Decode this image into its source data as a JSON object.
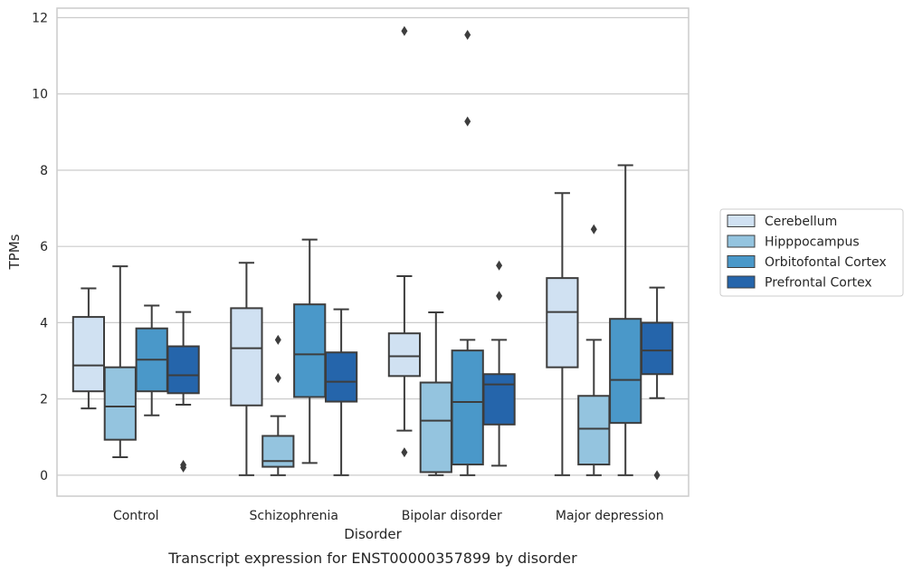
{
  "caption": "Transcript expression for ENST00000357899 by disorder",
  "chart_data": {
    "type": "box",
    "xlabel": "Disorder",
    "ylabel": "TPMs",
    "ylim": [
      -0.55,
      12.25
    ],
    "yticks": [
      0,
      2,
      4,
      6,
      8,
      10,
      12
    ],
    "grid": "horizontal",
    "legend_position": "right",
    "categories": [
      "Control",
      "Schizophrenia",
      "Bipolar disorder",
      "Major depression"
    ],
    "series": [
      {
        "name": "Cerebellum",
        "color": "#d0e1f2",
        "boxes": [
          {
            "whisker_low": 1.75,
            "q1": 2.2,
            "median": 2.88,
            "q3": 4.15,
            "whisker_high": 4.9,
            "outliers": []
          },
          {
            "whisker_low": 0.0,
            "q1": 1.83,
            "median": 3.33,
            "q3": 4.38,
            "whisker_high": 5.57,
            "outliers": []
          },
          {
            "whisker_low": 1.17,
            "q1": 2.6,
            "median": 3.12,
            "q3": 3.72,
            "whisker_high": 5.22,
            "outliers": [
              0.6,
              11.65
            ]
          },
          {
            "whisker_low": 0.0,
            "q1": 2.83,
            "median": 4.28,
            "q3": 5.17,
            "whisker_high": 7.4,
            "outliers": []
          }
        ]
      },
      {
        "name": "Hipppocampus",
        "color": "#94c4df",
        "boxes": [
          {
            "whisker_low": 0.47,
            "q1": 0.93,
            "median": 1.8,
            "q3": 2.83,
            "whisker_high": 5.48,
            "outliers": []
          },
          {
            "whisker_low": 0.0,
            "q1": 0.22,
            "median": 0.37,
            "q3": 1.03,
            "whisker_high": 1.55,
            "outliers": [
              2.55,
              3.55
            ]
          },
          {
            "whisker_low": 0.0,
            "q1": 0.08,
            "median": 1.43,
            "q3": 2.43,
            "whisker_high": 4.27,
            "outliers": []
          },
          {
            "whisker_low": 0.0,
            "q1": 0.28,
            "median": 1.22,
            "q3": 2.08,
            "whisker_high": 3.55,
            "outliers": [
              6.45
            ]
          }
        ]
      },
      {
        "name": "Orbitofontal Cortex",
        "color": "#4a98c9",
        "boxes": [
          {
            "whisker_low": 1.57,
            "q1": 2.2,
            "median": 3.03,
            "q3": 3.85,
            "whisker_high": 4.45,
            "outliers": []
          },
          {
            "whisker_low": 0.32,
            "q1": 2.05,
            "median": 3.17,
            "q3": 4.48,
            "whisker_high": 6.18,
            "outliers": []
          },
          {
            "whisker_low": 0.0,
            "q1": 0.28,
            "median": 1.92,
            "q3": 3.27,
            "whisker_high": 3.55,
            "outliers": [
              9.28,
              11.55
            ]
          },
          {
            "whisker_low": 0.0,
            "q1": 1.37,
            "median": 2.5,
            "q3": 4.1,
            "whisker_high": 8.13,
            "outliers": []
          }
        ]
      },
      {
        "name": "Prefrontal Cortex",
        "color": "#2565ab",
        "boxes": [
          {
            "whisker_low": 1.85,
            "q1": 2.15,
            "median": 2.62,
            "q3": 3.38,
            "whisker_high": 4.28,
            "outliers": [
              0.2,
              0.27
            ]
          },
          {
            "whisker_low": 0.0,
            "q1": 1.93,
            "median": 2.45,
            "q3": 3.22,
            "whisker_high": 4.35,
            "outliers": []
          },
          {
            "whisker_low": 0.25,
            "q1": 1.33,
            "median": 2.38,
            "q3": 2.65,
            "whisker_high": 3.55,
            "outliers": [
              4.7,
              5.5
            ]
          },
          {
            "whisker_low": 2.02,
            "q1": 2.65,
            "median": 3.27,
            "q3": 4.0,
            "whisker_high": 4.92,
            "outliers": [
              0.0
            ]
          }
        ]
      }
    ]
  }
}
